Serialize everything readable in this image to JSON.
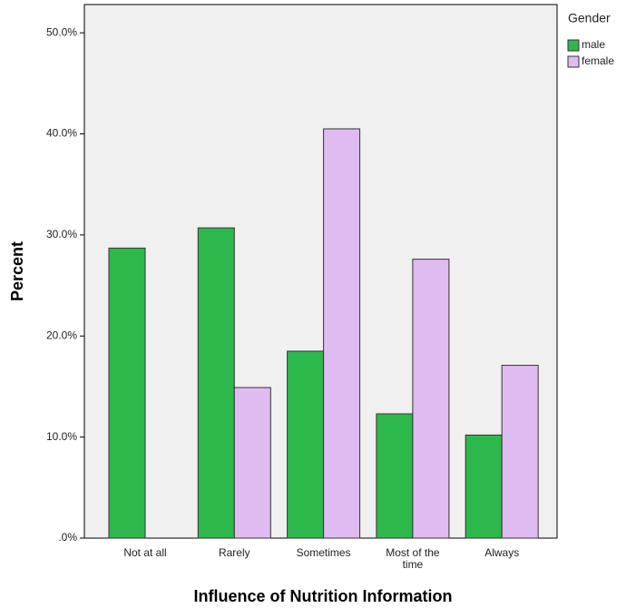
{
  "chart_data": {
    "type": "bar",
    "x_label": "Influence of Nutrition Information",
    "y_label": "Percent",
    "legend_title": "Gender",
    "categories": [
      "Not at all",
      "Rarely",
      "Sometimes",
      "Most of the time",
      "Always"
    ],
    "series": [
      {
        "name": "male",
        "color": "#2db84b",
        "values": [
          28.7,
          30.7,
          18.5,
          12.3,
          10.2
        ]
      },
      {
        "name": "female",
        "color": "#dfbbf2",
        "values": [
          0,
          14.9,
          40.5,
          27.6,
          17.1
        ]
      }
    ],
    "ylim": [
      0,
      52.8
    ],
    "yticks": [
      {
        "value": 0,
        "label": ".0%"
      },
      {
        "value": 10,
        "label": "10.0%"
      },
      {
        "value": 20,
        "label": "20.0%"
      },
      {
        "value": 30,
        "label": "30.0%"
      },
      {
        "value": 40,
        "label": "40.0%"
      },
      {
        "value": 50,
        "label": "50.0%"
      }
    ],
    "legend": "right"
  }
}
